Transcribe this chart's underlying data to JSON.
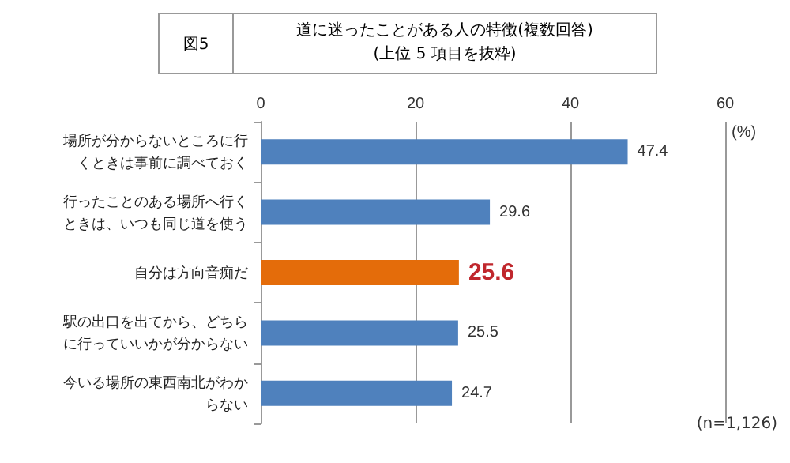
{
  "chart_data": {
    "type": "bar",
    "orientation": "horizontal",
    "title": "道に迷ったことがある人の特徴(複数回答)",
    "subtitle": "(上位 5 項目を抜粋)",
    "annotations": [
      "図5",
      "(n=1,126)"
    ],
    "categories": [
      "場所が分からないところに行くときは事前に調べておく",
      "行ったことのある場所へ行くときは、いつも同じ道を使う",
      "自分は方向音痴だ",
      "駅の出口を出てから、どちらに行っていいかが分からない",
      "今いる場所の東西南北がわからない"
    ],
    "values": [
      47.4,
      29.6,
      25.6,
      25.5,
      24.7
    ],
    "colors": [
      "#4f81bd",
      "#4f81bd",
      "#e46c0a",
      "#4f81bd",
      "#4f81bd"
    ],
    "xlabel": "(%)",
    "xlim": [
      0,
      60
    ],
    "xticks": [
      0,
      20,
      40,
      60
    ],
    "grid": "x",
    "data_labels": true
  }
}
